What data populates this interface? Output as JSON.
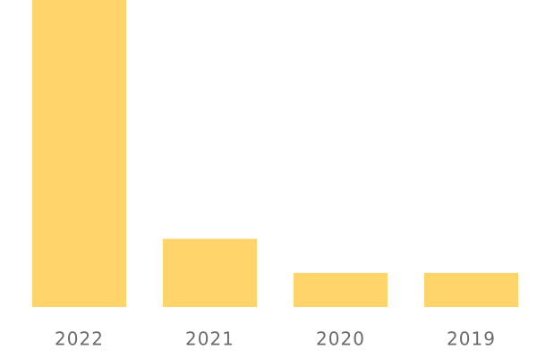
{
  "chart_data": {
    "type": "bar",
    "categories": [
      "2022",
      "2021",
      "2020",
      "2019"
    ],
    "values": [
      9,
      2,
      1,
      1
    ],
    "color": "#fed46b",
    "ylim": [
      0,
      9
    ]
  }
}
